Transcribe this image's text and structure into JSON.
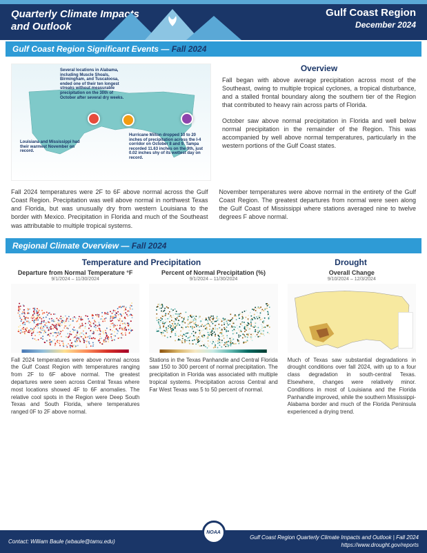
{
  "header": {
    "title_left": "Quarterly Climate Impacts and Outlook",
    "region": "Gulf Coast Region",
    "date": "December 2024",
    "accent_color": "#5aa8d6",
    "bg_color": "#1a3668"
  },
  "section1": {
    "bar_label": "Gulf Coast Region Significant Events —",
    "bar_season": " Fall 2024"
  },
  "overview": {
    "title": "Overview",
    "p1": "Fall began with above average precipitation across most of the Southeast, owing to multiple tropical cyclones, a tropical disturbance, and a stalled frontal boundary along the southern tier of the Region that contributed to heavy rain across parts of Florida.",
    "p2": "October saw above normal precipitation in Florida and well below normal precipitation in the remainder of the Region. This was accompanied by well above normal temperatures, particularly in the western portions of the Gulf Coast states."
  },
  "map_annotations": {
    "a1": "Several locations in Alabama, including Muscle Shoals, Birmingham, and Tuscaloosa, ended one of their ten longest streaks without measurable precipitation on the 30th of October after several dry weeks.",
    "a2": "Louisiana and Mississippi had their warmest November on record.",
    "a3": "Hurricane Milton dropped 10 to 20 inches of precipitation across the I-4 corridor on October 8 and 9. Tampa recorded 11.63 inches on the 9th, just 0.02 inches shy of its wettest day on record.",
    "icon_colors": {
      "thermo": "#e74c3c",
      "storm": "#f39c12",
      "hurricane": "#8e44ad"
    }
  },
  "summary": {
    "left": "Fall 2024 temperatures were 2F to 6F above normal across the Gulf Coast Region. Precipitation was well above normal in northwest Texas and Florida, but was unusually dry from western Louisiana to the border with Mexico. Precipitation in Florida and much of the Southeast was attributable to multiple tropical systems.",
    "right": "November temperatures were above normal in the entirety of the Gulf Coast Region. The greatest departures from normal were seen along the Gulf Coast of Mississippi where stations averaged nine to twelve degrees F above normal."
  },
  "section2": {
    "bar_label": "Regional Climate Overview —",
    "bar_season": " Fall 2024"
  },
  "tp": {
    "left_title": "Temperature and Precipitation",
    "right_title": "Drought"
  },
  "maps": {
    "temp": {
      "title": "Departure from Normal Temperature °F",
      "sub": "9/1/2024 – 11/30/2024",
      "desc": "Fall 2024 temperatures were above normal across the Gulf Coast Region with temperatures ranging from 2F to 6F above normal. The greatest departures were seen across Central Texas where most locations showed 4F to 6F anomalies. The relative cool spots in the Region were Deep South Texas and South Florida, where temperatures ranged 0F to 2F above normal."
    },
    "precip": {
      "title": "Percent of Normal Precipitation (%)",
      "sub": "9/1/2024 – 11/30/2024",
      "desc": "Stations in the Texas Panhandle and Central Florida saw 150 to 300 percent of normal precipitation. The precipitation in Florida was associated with multiple tropical systems. Precipitation across Central and Far West Texas was 5 to 50 percent of normal."
    },
    "drought": {
      "title": "Overall Change",
      "sub": "9/10/2024 – 12/3/2024",
      "desc": "Much of Texas saw substantial degradations in drought conditions over fall 2024, with up to a four class degradation in south-central Texas. Elsewhere, changes were relatively minor. Conditions in most of Louisiana and the Florida Panhandle improved, while the southern Mississippi-Alabama border and much of the Florida Peninsula experienced a drying trend."
    }
  },
  "footer": {
    "contact": "Contact: William Baule (wbaule@tamu.edu)",
    "line1": "Gulf Coast Region Quarterly Climate Impacts and Outlook | Fall 2024",
    "line2": "https://www.drought.gov/reports",
    "badge": "NOAA"
  }
}
